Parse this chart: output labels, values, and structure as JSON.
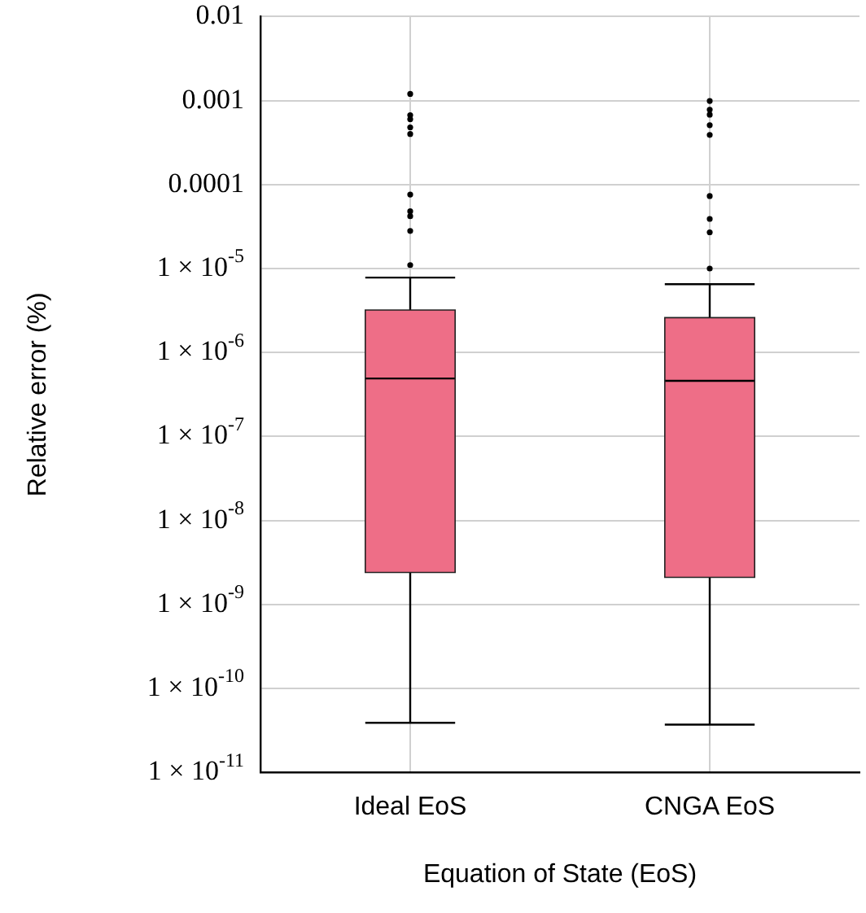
{
  "chart_data": {
    "type": "box",
    "xlabel": "Equation of State (EoS)",
    "ylabel": "Relative error (%)",
    "categories": [
      "Ideal EoS",
      "CNGA EoS"
    ],
    "series": [
      {
        "color": "#ee6e87",
        "boxes": [
          {
            "low": 3.9e-11,
            "q1": 2.4e-09,
            "median": 4.9e-07,
            "q3": 3.2e-06,
            "high": 7.8e-06,
            "outliers": [
              0.0012,
              0.00067,
              0.0006,
              0.00048,
              0.0004,
              7.6e-05,
              4.8e-05,
              4.2e-05,
              2.8e-05,
              1.1e-05
            ]
          },
          {
            "low": 3.7e-11,
            "q1": 2.1e-09,
            "median": 4.6e-07,
            "q3": 2.6e-06,
            "high": 6.5e-06,
            "outliers": [
              0.00099,
              0.00078,
              0.00068,
              0.00051,
              0.00039,
              7.3e-05,
              3.9e-05,
              2.7e-05,
              1e-05
            ]
          }
        ]
      }
    ],
    "log": true,
    "grid": true,
    "marker": "circle",
    "ylim": [
      1e-11,
      0.01
    ],
    "yticks": [
      0.01,
      0.001,
      0.0001,
      {
        "value": 1e-05,
        "label": "1 × 10$^{-5}$"
      },
      {
        "value": 1e-06,
        "label": "1 × 10$^{-6}$"
      },
      {
        "value": 1e-07,
        "label": "1 × 10$^{-7}$"
      },
      {
        "value": 1e-08,
        "label": "1 × 10$^{-8}$"
      },
      {
        "value": 1e-09,
        "label": "1 × 10$^{-9}$"
      },
      {
        "value": 1e-10,
        "label": "1 × 10$^{-10}$"
      },
      {
        "value": 1e-11,
        "label": "1 × 10$^{-11}$"
      }
    ]
  }
}
